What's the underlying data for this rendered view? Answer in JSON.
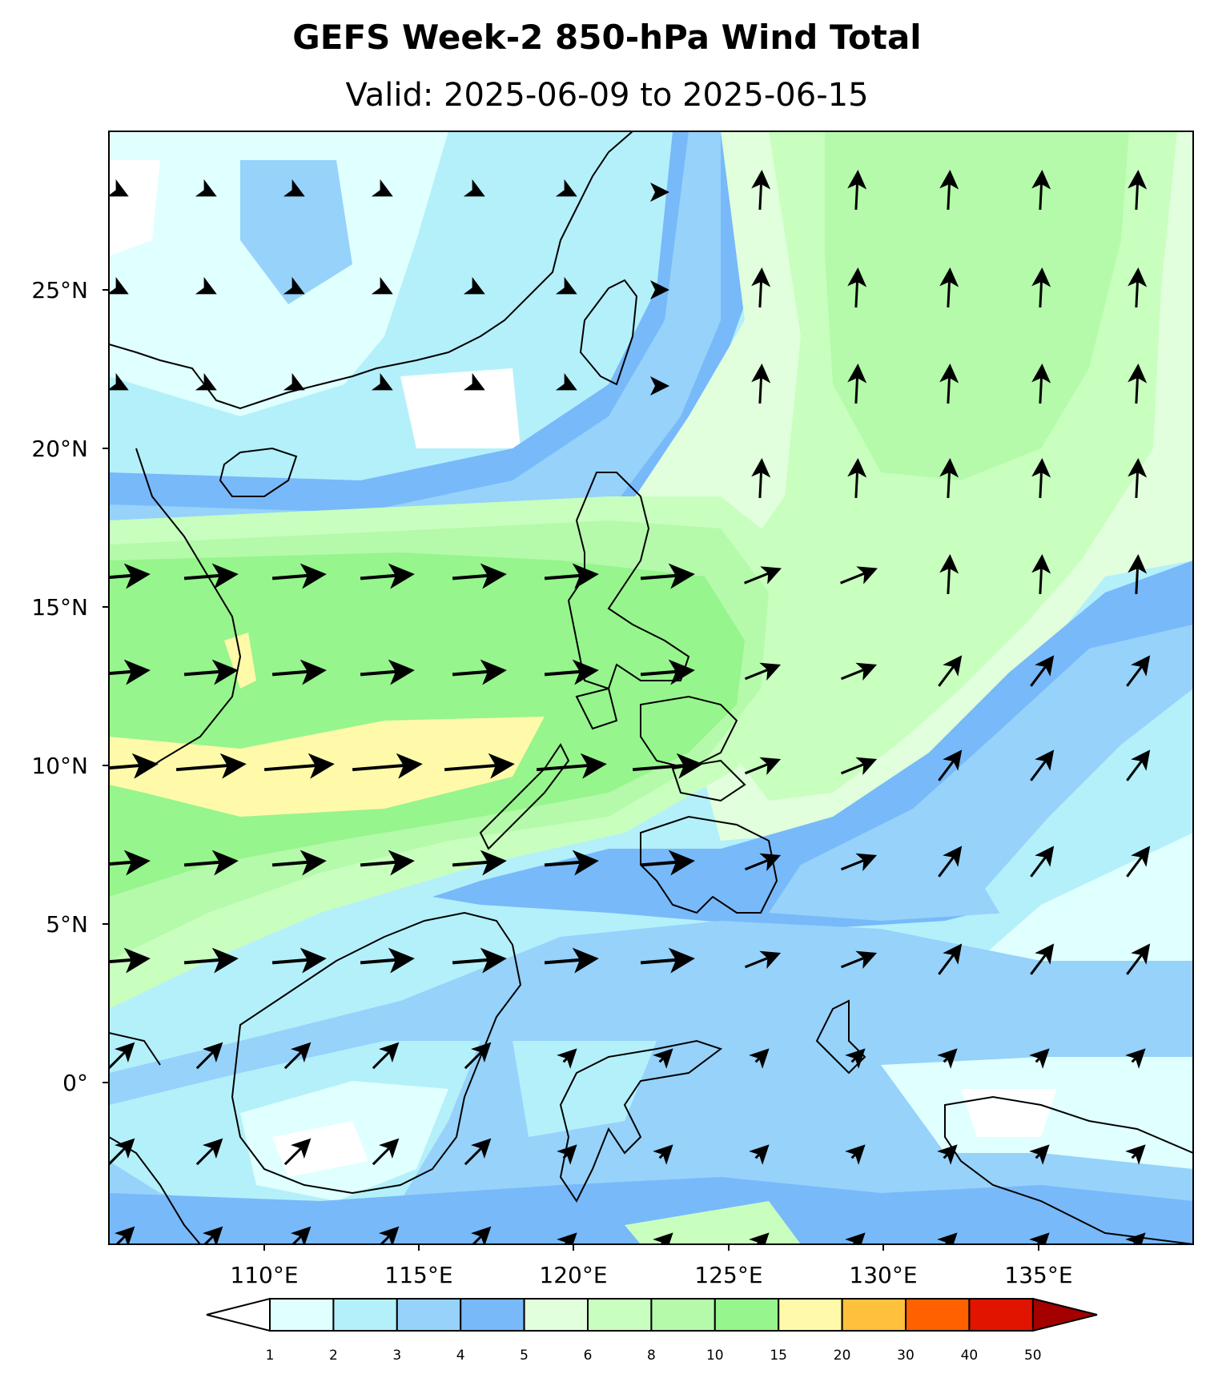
{
  "title": "GEFS Week-2 850-hPa Wind Total",
  "subtitle": "Valid: 2025-06-09 to 2025-06-15",
  "map": {
    "region": "Philippines and surrounding seas",
    "lon_range": [
      105,
      140
    ],
    "lat_range": [
      -5,
      30
    ],
    "lat_labels": [
      "25°N",
      "20°N",
      "15°N",
      "10°N",
      "5°N",
      "0°"
    ],
    "lon_labels": [
      "110°E",
      "115°E",
      "120°E",
      "125°E",
      "130°E",
      "135°E"
    ],
    "field": "850-hPa wind speed (shaded) and wind vectors (arrows)",
    "coastlines": true
  },
  "colorbar": {
    "labels": [
      "1",
      "2",
      "3",
      "4",
      "5",
      "6",
      "8",
      "10",
      "15",
      "20",
      "30",
      "40",
      "50"
    ],
    "colors": [
      "#e0ffff",
      "#b4f0fa",
      "#96d2fa",
      "#78b9fa",
      "#e1ffdc",
      "#c8ffbe",
      "#b4faaa",
      "#96f58c",
      "#fffaaa",
      "#ffc03c",
      "#ff6000",
      "#e11400",
      "#a50000"
    ],
    "under_color": "#ffffff",
    "extend": "both"
  }
}
